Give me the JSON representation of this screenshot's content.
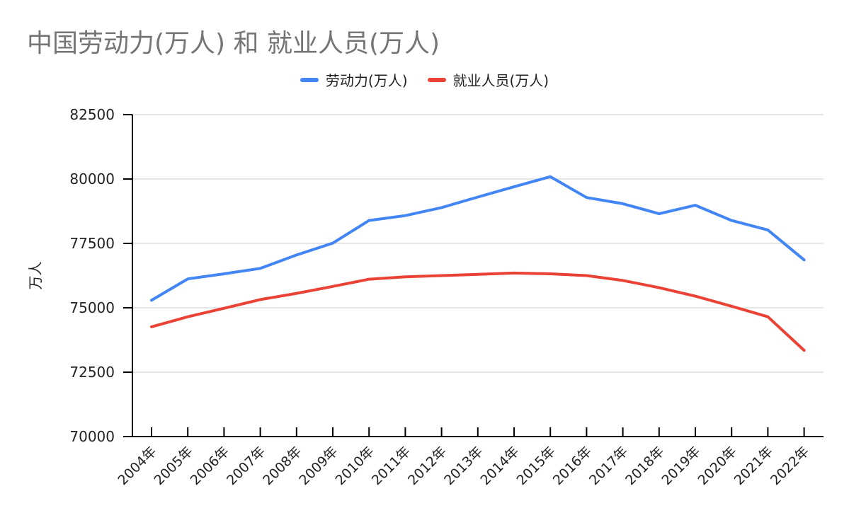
{
  "chart_data": {
    "type": "line",
    "title": "中国劳动力(万人) 和 就业人员(万人)",
    "ylabel": "万人",
    "xlabel": "",
    "categories": [
      "2004年",
      "2005年",
      "2006年",
      "2007年",
      "2008年",
      "2009年",
      "2010年",
      "2011年",
      "2012年",
      "2013年",
      "2014年",
      "2015年",
      "2016年",
      "2017年",
      "2018年",
      "2019年",
      "2020年",
      "2021年",
      "2022年"
    ],
    "ylim": [
      70000,
      82500
    ],
    "yticks": [
      "70000",
      "72500",
      "75000",
      "77500",
      "80000",
      "82500"
    ],
    "grid": true,
    "legend_position": "top",
    "series": [
      {
        "name": "劳动力(万人)",
        "color": "#4285f4",
        "values": [
          75290,
          76120,
          76320,
          76530,
          77050,
          77510,
          78390,
          78580,
          78890,
          79300,
          79700,
          80090,
          79280,
          79040,
          78650,
          78980,
          78390,
          78020,
          76860
        ]
      },
      {
        "name": "就业人员(万人)",
        "color": "#ea4335",
        "values": [
          74260,
          74650,
          74980,
          75320,
          75560,
          75830,
          76110,
          76200,
          76250,
          76300,
          76350,
          76320,
          76250,
          76060,
          75780,
          75450,
          75060,
          74650,
          73350
        ]
      }
    ]
  }
}
